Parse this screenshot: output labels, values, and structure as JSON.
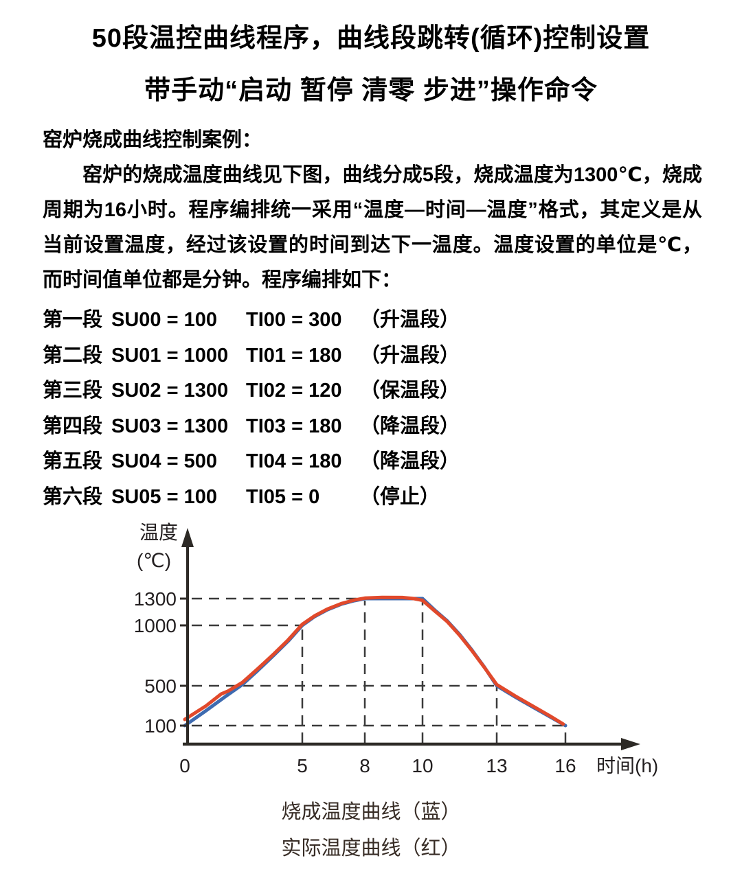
{
  "title": {
    "line1": "50段温控曲线程序，曲线段跳转(循环)控制设置",
    "line2": "带手动“启动 暂停 清零 步进”操作命令"
  },
  "intro": {
    "case_label": "窑炉烧成曲线控制案例：",
    "paragraph": "窑炉的烧成温度曲线见下图，曲线分成5段，烧成温度为1300℃，烧成周期为16小时。程序编排统一采用“温度—时间—温度”格式，其定义是从当前设置温度，经过该设置的时间到达下一温度。温度设置的单位是℃，而时间值单位都是分钟。程序编排如下："
  },
  "segments": [
    {
      "name": "第一段",
      "su": "SU00 = 100",
      "ti": "TI00 = 300",
      "note": "（升温段）"
    },
    {
      "name": "第二段",
      "su": "SU01 = 1000",
      "ti": "TI01 = 180",
      "note": "（升温段）"
    },
    {
      "name": "第三段",
      "su": "SU02 = 1300",
      "ti": "TI02 = 120",
      "note": "（保温段）"
    },
    {
      "name": "第四段",
      "su": "SU03 = 1300",
      "ti": "TI03 = 180",
      "note": "（降温段）"
    },
    {
      "name": "第五段",
      "su": "SU04 = 500",
      "ti": "TI04 = 180",
      "note": "（降温段）"
    },
    {
      "name": "第六段",
      "su": "SU05 = 100",
      "ti": "TI05 = 0",
      "note": "（停止）"
    }
  ],
  "chart_data": {
    "type": "line",
    "ylabel_line1": "温度",
    "ylabel_line2": "(℃)",
    "xlabel": "时间(h)",
    "yticks": [
      1300,
      1000,
      500,
      100
    ],
    "xticks": [
      0,
      5,
      8,
      10,
      13,
      16
    ],
    "xlim": [
      0,
      16
    ],
    "ylim": [
      100,
      1300
    ],
    "grid": "dashed guides at yticks and xticks",
    "legend_position": "below",
    "legend": [
      "烧成温度曲线（蓝）",
      "实际温度曲线（红）"
    ],
    "series": [
      {
        "name": "烧成温度曲线（蓝）",
        "color": "#3e6bb0",
        "points": [
          [
            0,
            100
          ],
          [
            0.9,
            250
          ],
          [
            1.8,
            405
          ],
          [
            2.45,
            510
          ],
          [
            3.1,
            625
          ],
          [
            3.8,
            755
          ],
          [
            4.4,
            870
          ],
          [
            5,
            1000
          ],
          [
            5.6,
            1100
          ],
          [
            6.2,
            1175
          ],
          [
            6.9,
            1240
          ],
          [
            7.5,
            1277
          ],
          [
            8,
            1300
          ],
          [
            9,
            1300
          ],
          [
            10,
            1300
          ],
          [
            10.5,
            1170
          ],
          [
            11,
            1050
          ],
          [
            11.5,
            925
          ],
          [
            12,
            795
          ],
          [
            12.5,
            655
          ],
          [
            13,
            500
          ],
          [
            13.8,
            388
          ],
          [
            14.6,
            283
          ],
          [
            15.3,
            192
          ],
          [
            16,
            100
          ]
        ]
      },
      {
        "name": "实际温度曲线（红）",
        "color": "#e1492b",
        "points": [
          [
            0,
            162
          ],
          [
            0.9,
            298
          ],
          [
            1.55,
            418
          ],
          [
            1.85,
            448
          ],
          [
            2.45,
            528
          ],
          [
            3.1,
            640
          ],
          [
            3.8,
            766
          ],
          [
            4.4,
            880
          ],
          [
            5,
            1012
          ],
          [
            5.6,
            1108
          ],
          [
            6.2,
            1182
          ],
          [
            6.9,
            1246
          ],
          [
            7.5,
            1284
          ],
          [
            8,
            1305
          ],
          [
            8.6,
            1313
          ],
          [
            9.3,
            1312
          ],
          [
            9.7,
            1300
          ],
          [
            10,
            1280
          ],
          [
            10.5,
            1160
          ],
          [
            11,
            1042
          ],
          [
            11.5,
            918
          ],
          [
            12,
            790
          ],
          [
            12.5,
            652
          ],
          [
            13,
            510
          ],
          [
            13.8,
            398
          ],
          [
            14.6,
            293
          ],
          [
            15.3,
            200
          ],
          [
            15.9,
            115
          ]
        ]
      }
    ]
  },
  "colors": {
    "blue_curve": "#3e6bb0",
    "red_curve": "#e1492b",
    "axis": "#2d2a26",
    "dash_guide": "#3a3a3a",
    "text": "#000000",
    "legend_text": "#372c25"
  }
}
